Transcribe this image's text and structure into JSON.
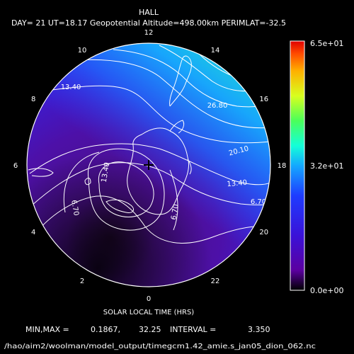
{
  "chart_data": {
    "type": "heatmap",
    "projection": "polar",
    "title": "HALL",
    "subtitle": "DAY= 21 UT=18.17 Geopotential Altitude=498.00km PERIMLAT=-32.5",
    "xlabel": "SOLAR LOCAL TIME (HRS)",
    "local_time_labels": [
      "12",
      "14",
      "16",
      "18",
      "20",
      "22",
      "0",
      "2",
      "4",
      "6",
      "8",
      "10"
    ],
    "contour_labels": [
      "13.40",
      "26.80",
      "20.10",
      "13.40",
      "6.70",
      "6.70",
      "13.40",
      "6.70"
    ],
    "colorbar": {
      "max_label": "6.5e+01",
      "mid_label": "3.2e+01",
      "min_label": "0.0e+00",
      "range": [
        0,
        65
      ],
      "colormap": [
        "#000000",
        "#5b00a0",
        "#3a12d8",
        "#1e3cff",
        "#14a8ff",
        "#14ffd8",
        "#4aff5a",
        "#d8ff1e",
        "#ffb000",
        "#ff4a00",
        "#e00000"
      ]
    },
    "stats": {
      "minmax_label": "MIN,MAX =",
      "min": "0.1867,",
      "max": "32.25",
      "interval_label": "INTERVAL =",
      "interval": "3.350"
    },
    "footer": "/hao/aim2/woolman/model_output/timegcm1.42_amie.s_jan05_dion_062.nc"
  }
}
